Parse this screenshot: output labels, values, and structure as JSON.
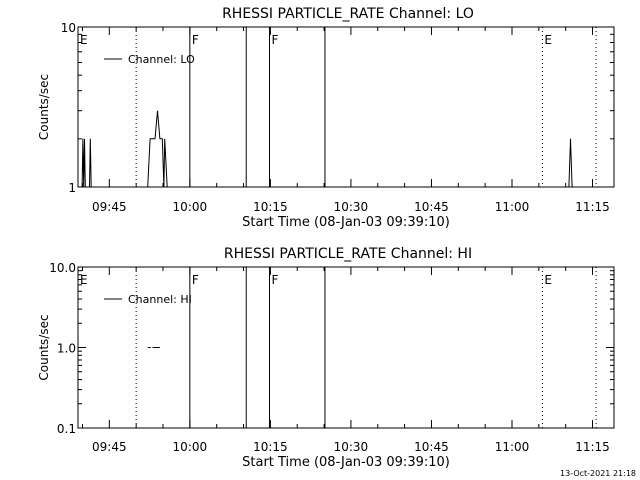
{
  "chart_data": [
    {
      "type": "line",
      "title": "RHESSI PARTICLE_RATE Channel: LO",
      "xlabel": "Start Time (08-Jan-03 09:39:10)",
      "ylabel": "Counts/sec",
      "y_scale": "log",
      "ylim": [
        1,
        10
      ],
      "y_tick_labels": [
        "1",
        "10"
      ],
      "x_unit": "minutes",
      "xlim": [
        "09:39:10",
        "11:19:00"
      ],
      "x_tick_labels": [
        "09:45",
        "10:00",
        "10:15",
        "10:30",
        "10:45",
        "11:00",
        "11:15"
      ],
      "x_tick_values": [
        "09:45",
        "10:00",
        "10:15",
        "10:30",
        "10:45",
        "11:00",
        "11:15"
      ],
      "grid": false,
      "legend": "top-left",
      "series": [
        {
          "name": "Channel: LO",
          "points": [
            [
              "09:39:56",
              1
            ],
            [
              "09:40:05",
              2
            ],
            [
              "09:40:14",
              1
            ],
            [
              "09:40:23",
              2
            ],
            [
              "09:40:32",
              1
            ],
            [
              "09:41:19",
              1
            ],
            [
              "09:41:28",
              2
            ],
            [
              "09:41:37",
              1
            ],
            [
              "09:52:09",
              1
            ],
            [
              "09:52:36",
              2
            ],
            [
              "09:53:31",
              2
            ],
            [
              "09:53:58",
              3
            ],
            [
              "09:54:25",
              2
            ],
            [
              "09:54:52",
              2
            ],
            [
              "09:55:10",
              1
            ],
            [
              "09:55:19",
              2
            ],
            [
              "09:55:47",
              1
            ],
            [
              "11:10:36",
              1
            ],
            [
              "11:10:54",
              2
            ],
            [
              "11:11:12",
              1
            ]
          ]
        }
      ],
      "markers": [
        {
          "label": "E",
          "time": "09:39:10",
          "style": "none"
        },
        {
          "label": "",
          "time": "09:50:00",
          "style": "dotted"
        },
        {
          "label": "F",
          "time": "10:00:00",
          "style": "solid"
        },
        {
          "label": "",
          "time": "10:10:30",
          "style": "solid"
        },
        {
          "label": "F",
          "time": "10:14:50",
          "style": "solid"
        },
        {
          "label": "",
          "time": "10:25:10",
          "style": "solid"
        },
        {
          "label": "E",
          "time": "11:05:40",
          "style": "dotted"
        },
        {
          "label": "",
          "time": "11:15:40",
          "style": "dotted"
        }
      ]
    },
    {
      "type": "line",
      "title": "RHESSI PARTICLE_RATE Channel: HI",
      "xlabel": "Start Time (08-Jan-03 09:39:10)",
      "ylabel": "Counts/sec",
      "y_scale": "log",
      "ylim": [
        0.1,
        10
      ],
      "y_tick_labels": [
        "0.1",
        "1.0",
        "10.0"
      ],
      "x_unit": "minutes",
      "xlim": [
        "09:39:10",
        "11:19:00"
      ],
      "x_tick_labels": [
        "09:45",
        "10:00",
        "10:15",
        "10:30",
        "10:45",
        "11:00",
        "11:15"
      ],
      "x_tick_values": [
        "09:45",
        "10:00",
        "10:15",
        "10:30",
        "10:45",
        "11:00",
        "11:15"
      ],
      "grid": false,
      "legend": "top-left",
      "series": [
        {
          "name": "Channel: HI",
          "segments": [
            [
              [
                "09:52:09",
                1.0
              ],
              [
                "09:52:45",
                1.0
              ]
            ],
            [
              [
                "09:53:04",
                1.0
              ],
              [
                "09:54:25",
                1.0
              ]
            ]
          ]
        }
      ],
      "markers": [
        {
          "label": "E",
          "time": "09:39:10",
          "style": "none"
        },
        {
          "label": "",
          "time": "09:50:00",
          "style": "dotted"
        },
        {
          "label": "F",
          "time": "10:00:00",
          "style": "solid"
        },
        {
          "label": "",
          "time": "10:10:30",
          "style": "solid"
        },
        {
          "label": "F",
          "time": "10:14:50",
          "style": "solid"
        },
        {
          "label": "",
          "time": "10:25:10",
          "style": "solid"
        },
        {
          "label": "E",
          "time": "11:05:40",
          "style": "dotted"
        },
        {
          "label": "",
          "time": "11:15:40",
          "style": "dotted"
        }
      ]
    }
  ],
  "footer": {
    "timestamp": "13-Oct-2021 21:18"
  }
}
